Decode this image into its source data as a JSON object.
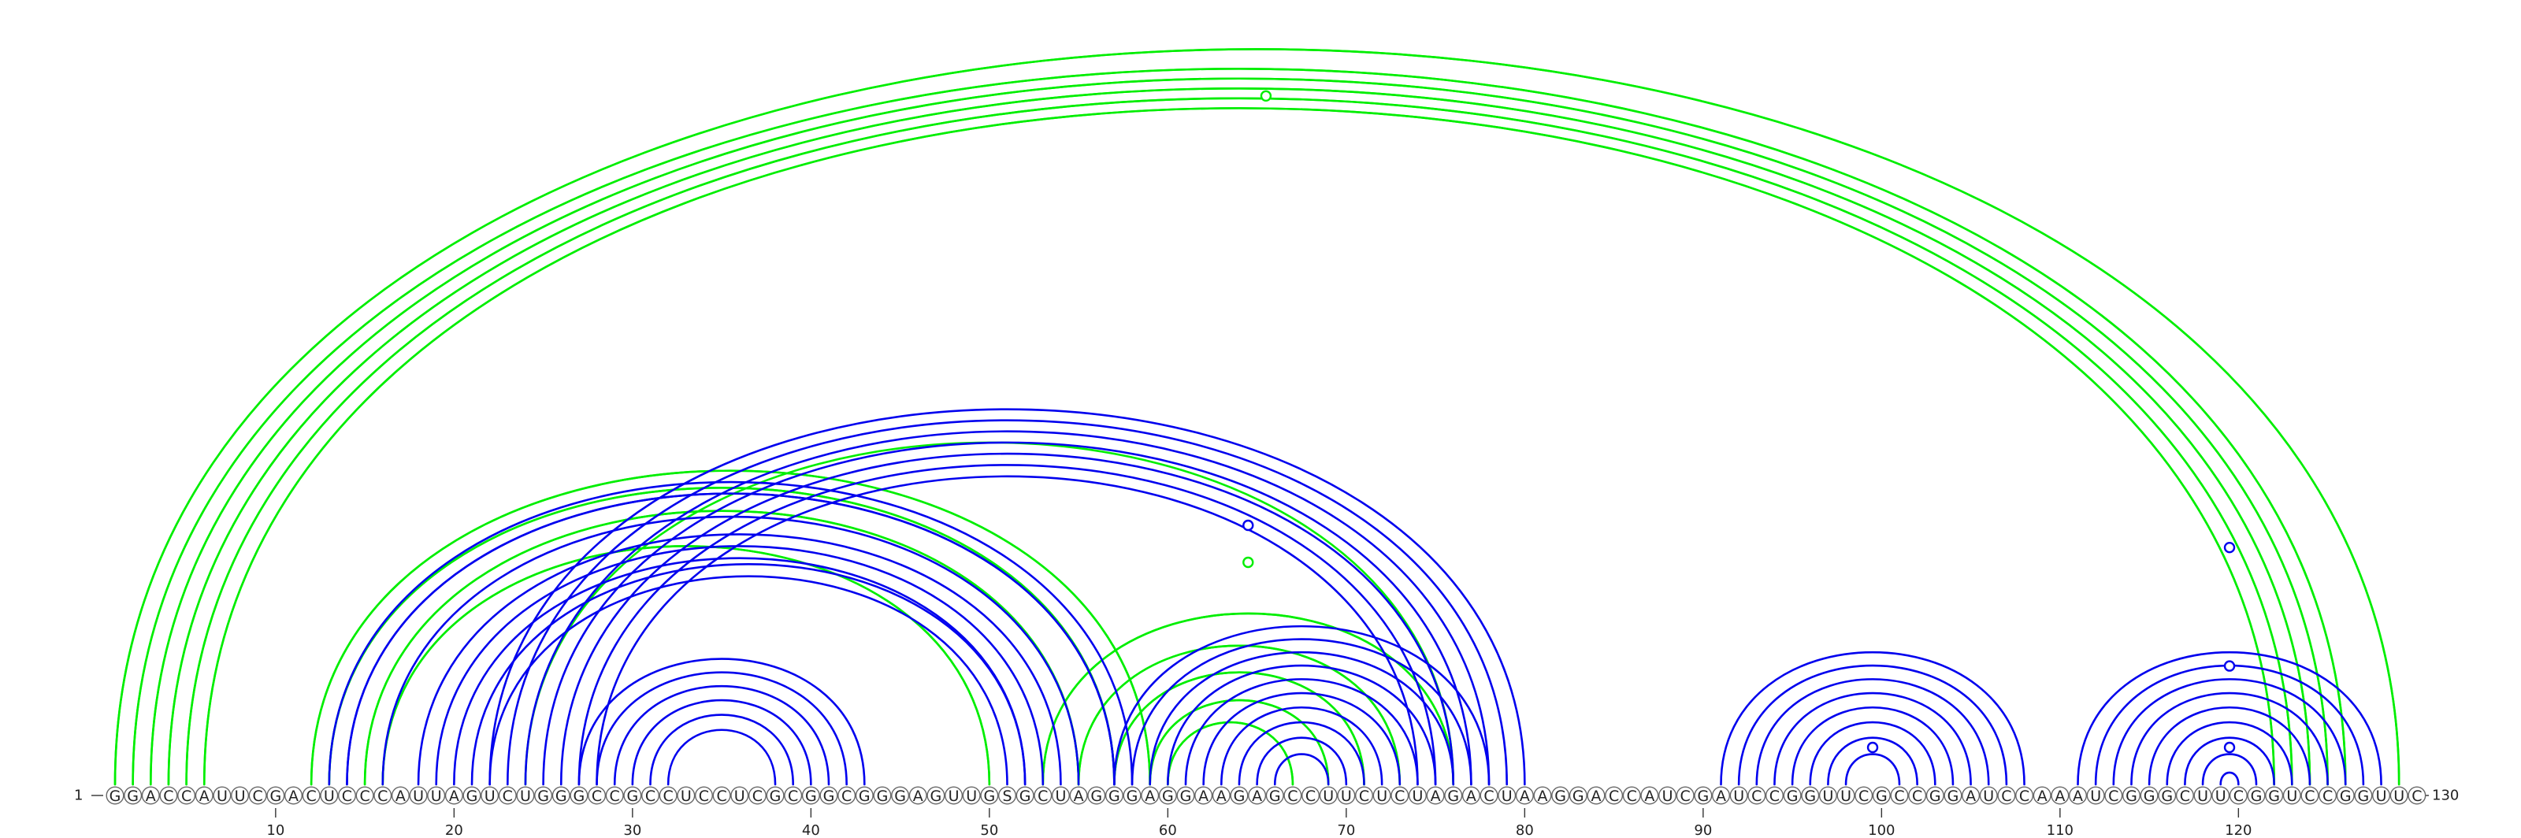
{
  "sequence": "GGACCAUUCGACUCCCAUUAGUCUGGGCCGCCUCCUCGCGGCGGGAGUUGSGCUAGGGAGGAAGAGCCUUCUCUAGACUAAGGACCAUCGAUCCGGUUCGCCGGAUCCAAAUCGGGCUUCGGUCCGGUUC",
  "start_label": "1",
  "end_label": "130",
  "tick_labels": [
    "10",
    "20",
    "30",
    "40",
    "50",
    "60",
    "70",
    "80",
    "90",
    "100",
    "110",
    "120"
  ],
  "colors": {
    "set_a": "#00ee00",
    "set_b": "#0000ee"
  },
  "chart_data": {
    "type": "arc-diagram",
    "length": 130,
    "ticks": [
      10,
      20,
      30,
      40,
      50,
      60,
      70,
      80,
      90,
      100,
      110,
      120
    ],
    "series": [
      {
        "color": "#00ee00",
        "arcs": [
          [
            1,
            129
          ],
          [
            1,
            129
          ],
          [
            2,
            126
          ],
          [
            2,
            126
          ],
          [
            3,
            125
          ],
          [
            3,
            125
          ],
          [
            4,
            124
          ],
          [
            4,
            124
          ],
          [
            5,
            123
          ],
          [
            5,
            123
          ],
          [
            6,
            122
          ],
          [
            6,
            122
          ],
          [
            12,
            59
          ],
          [
            12,
            59
          ],
          [
            13,
            57
          ],
          [
            13,
            57
          ],
          [
            15,
            55
          ],
          [
            15,
            55
          ],
          [
            16,
            50
          ],
          [
            16,
            50
          ],
          [
            24,
            76
          ],
          [
            53,
            76
          ],
          [
            53,
            76
          ],
          [
            55,
            73
          ],
          [
            55,
            73
          ],
          [
            57,
            71
          ],
          [
            57,
            71
          ],
          [
            59,
            69
          ],
          [
            59,
            69
          ],
          [
            60,
            67
          ],
          [
            60,
            67
          ]
        ]
      },
      {
        "color": "#0000ee",
        "arcs": [
          [
            13,
            58
          ],
          [
            14,
            57
          ],
          [
            14,
            57
          ],
          [
            16,
            55
          ],
          [
            18,
            54
          ],
          [
            19,
            53
          ],
          [
            20,
            52
          ],
          [
            21,
            52
          ],
          [
            22,
            51
          ],
          [
            22,
            80
          ],
          [
            23,
            79
          ],
          [
            24,
            78
          ],
          [
            25,
            77
          ],
          [
            26,
            76
          ],
          [
            27,
            75
          ],
          [
            28,
            74
          ],
          [
            27,
            43
          ],
          [
            28,
            42
          ],
          [
            29,
            41
          ],
          [
            30,
            40
          ],
          [
            31,
            39
          ],
          [
            32,
            38
          ],
          [
            57,
            78
          ],
          [
            58,
            77
          ],
          [
            59,
            76
          ],
          [
            60,
            75
          ],
          [
            61,
            74
          ],
          [
            62,
            73
          ],
          [
            63,
            72
          ],
          [
            64,
            71
          ],
          [
            65,
            70
          ],
          [
            66,
            69
          ],
          [
            91,
            108
          ],
          [
            92,
            107
          ],
          [
            93,
            106
          ],
          [
            94,
            105
          ],
          [
            95,
            104
          ],
          [
            96,
            103
          ],
          [
            97,
            102
          ],
          [
            98,
            101
          ],
          [
            111,
            128
          ],
          [
            112,
            127
          ],
          [
            113,
            126
          ],
          [
            114,
            125
          ],
          [
            115,
            124
          ],
          [
            116,
            123
          ],
          [
            117,
            122
          ],
          [
            118,
            121
          ],
          [
            119,
            120
          ]
        ]
      }
    ],
    "markers": [
      {
        "pos": 65.5,
        "color": "#00ee00",
        "level": 0.93
      },
      {
        "pos": 64.5,
        "color": "#0000ee",
        "level": 0.35
      },
      {
        "pos": 64.5,
        "color": "#00ee00",
        "level": 0.3
      },
      {
        "pos": 99.5,
        "color": "#0000ee",
        "level": 0.05
      },
      {
        "pos": 119.5,
        "color": "#0000ee",
        "level": 0.32
      },
      {
        "pos": 119.5,
        "color": "#0000ee",
        "level": 0.16
      },
      {
        "pos": 119.5,
        "color": "#0000ee",
        "level": 0.05
      }
    ]
  }
}
